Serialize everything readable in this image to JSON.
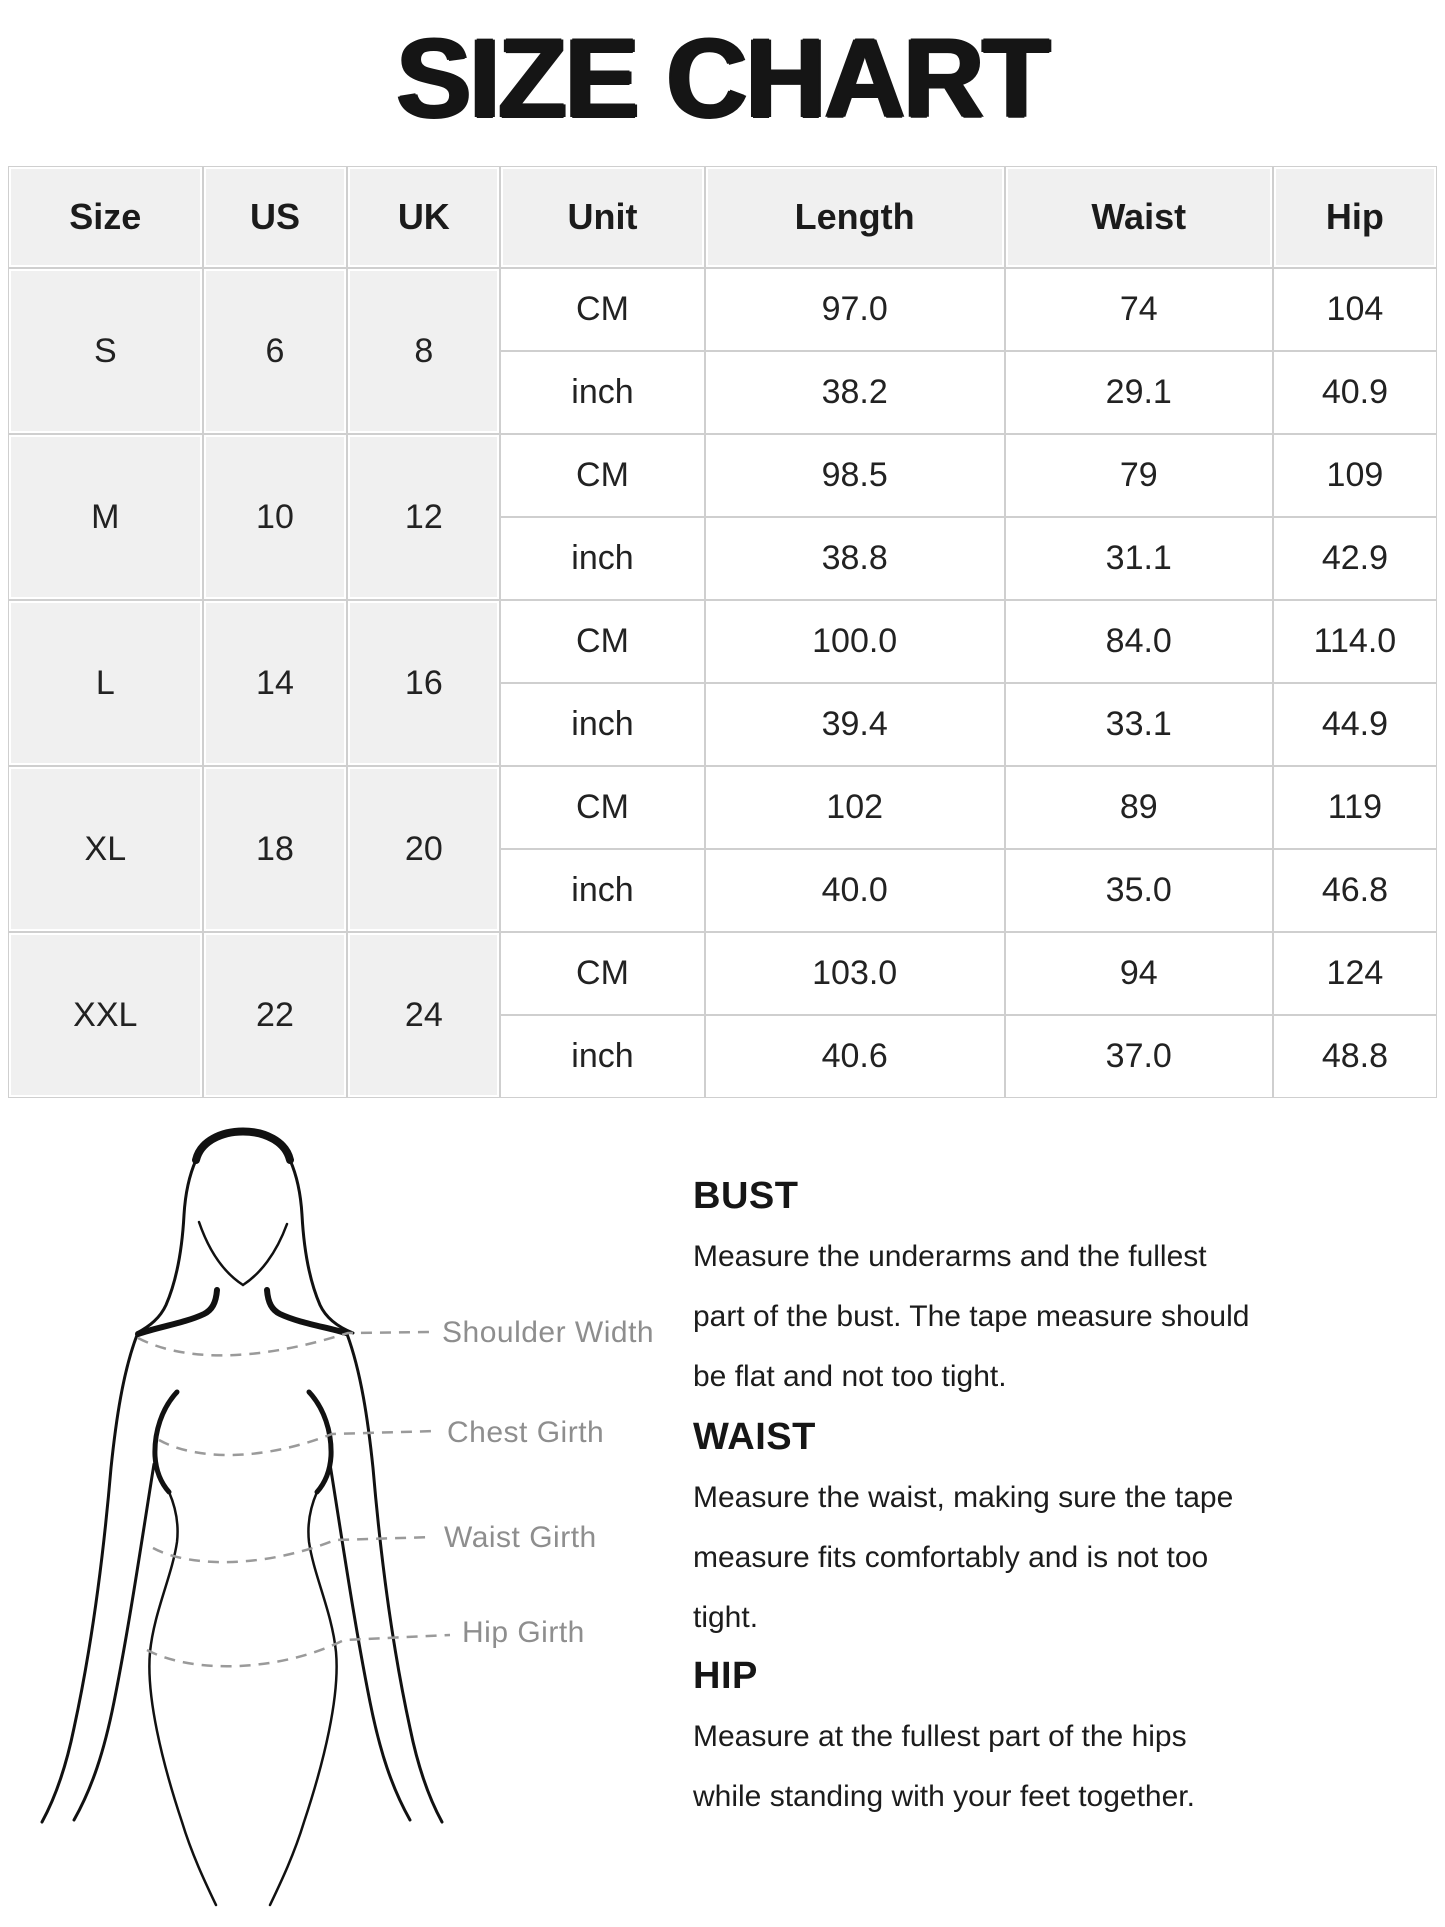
{
  "title": "SIZE CHART",
  "table": {
    "headers": [
      "Size",
      "US",
      "UK",
      "Unit",
      "Length",
      "Waist",
      "Hip"
    ],
    "unit_labels": [
      "CM",
      "inch"
    ],
    "rows": [
      {
        "size": "S",
        "us": "6",
        "uk": "8",
        "cm": [
          "97.0",
          "74",
          "104"
        ],
        "inch": [
          "38.2",
          "29.1",
          "40.9"
        ]
      },
      {
        "size": "M",
        "us": "10",
        "uk": "12",
        "cm": [
          "98.5",
          "79",
          "109"
        ],
        "inch": [
          "38.8",
          "31.1",
          "42.9"
        ]
      },
      {
        "size": "L",
        "us": "14",
        "uk": "16",
        "cm": [
          "100.0",
          "84.0",
          "114.0"
        ],
        "inch": [
          "39.4",
          "33.1",
          "44.9"
        ]
      },
      {
        "size": "XL",
        "us": "18",
        "uk": "20",
        "cm": [
          "102",
          "89",
          "119"
        ],
        "inch": [
          "40.0",
          "35.0",
          "46.8"
        ]
      },
      {
        "size": "XXL",
        "us": "22",
        "uk": "24",
        "cm": [
          "103.0",
          "94",
          "124"
        ],
        "inch": [
          "40.6",
          "37.0",
          "48.8"
        ]
      }
    ]
  },
  "figure": {
    "labels": [
      "Shoulder Width",
      "Chest Girth",
      "Waist Girth",
      "Hip Girth"
    ]
  },
  "instructions": [
    {
      "heading": "BUST",
      "lines": [
        "Measure the underarms and the fullest",
        "part of the bust. The tape measure should",
        "be flat and not too tight."
      ]
    },
    {
      "heading": "WAIST",
      "lines": [
        "Measure the waist, making sure the tape",
        "measure fits comfortably and is not too",
        "tight."
      ]
    },
    {
      "heading": "HIP",
      "lines": [
        "Measure at the fullest part of the hips",
        "while standing with your feet together."
      ]
    }
  ],
  "colors": {
    "cell_bg": "#f0f0f0",
    "grid_line": "#cfcfcf",
    "text": "#1e1e1e",
    "label_muted": "#8e8e8e"
  }
}
